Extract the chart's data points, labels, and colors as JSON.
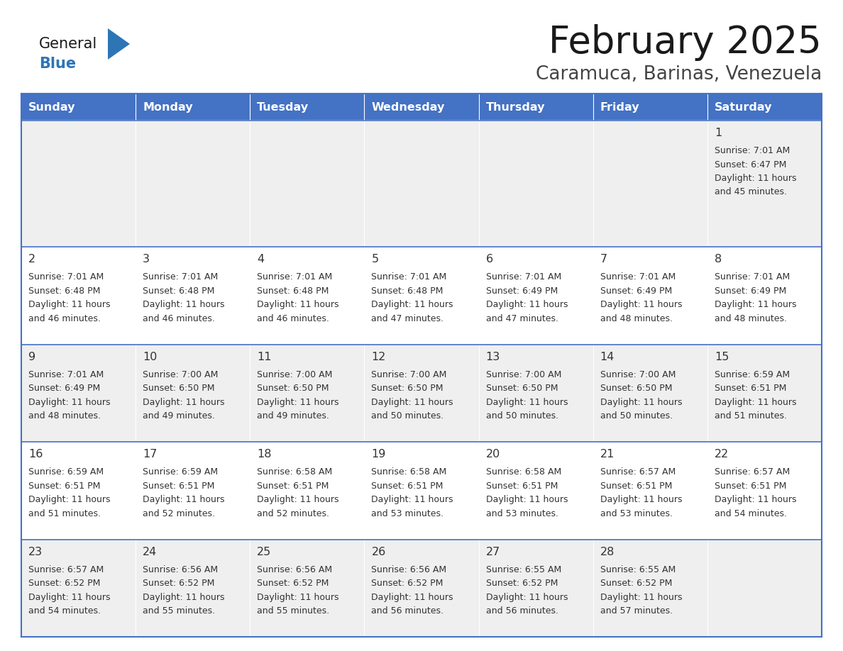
{
  "title": "February 2025",
  "subtitle": "Caramuca, Barinas, Venezuela",
  "days_of_week": [
    "Sunday",
    "Monday",
    "Tuesday",
    "Wednesday",
    "Thursday",
    "Friday",
    "Saturday"
  ],
  "header_bg": "#4472C4",
  "header_text": "#FFFFFF",
  "cell_bg_odd": "#EFEFEF",
  "cell_bg_even": "#FFFFFF",
  "cell_text": "#333333",
  "border_color": "#4472C4",
  "title_color": "#1a1a1a",
  "subtitle_color": "#444444",
  "logo_general_color": "#1a1a1a",
  "logo_blue_color": "#2E75B6",
  "calendar_data": [
    [
      null,
      null,
      null,
      null,
      null,
      null,
      {
        "day": 1,
        "sunrise": "7:01 AM",
        "sunset": "6:47 PM",
        "daylight": "11 hours",
        "daylight2": "and 45 minutes."
      }
    ],
    [
      {
        "day": 2,
        "sunrise": "7:01 AM",
        "sunset": "6:48 PM",
        "daylight": "11 hours",
        "daylight2": "and 46 minutes."
      },
      {
        "day": 3,
        "sunrise": "7:01 AM",
        "sunset": "6:48 PM",
        "daylight": "11 hours",
        "daylight2": "and 46 minutes."
      },
      {
        "day": 4,
        "sunrise": "7:01 AM",
        "sunset": "6:48 PM",
        "daylight": "11 hours",
        "daylight2": "and 46 minutes."
      },
      {
        "day": 5,
        "sunrise": "7:01 AM",
        "sunset": "6:48 PM",
        "daylight": "11 hours",
        "daylight2": "and 47 minutes."
      },
      {
        "day": 6,
        "sunrise": "7:01 AM",
        "sunset": "6:49 PM",
        "daylight": "11 hours",
        "daylight2": "and 47 minutes."
      },
      {
        "day": 7,
        "sunrise": "7:01 AM",
        "sunset": "6:49 PM",
        "daylight": "11 hours",
        "daylight2": "and 48 minutes."
      },
      {
        "day": 8,
        "sunrise": "7:01 AM",
        "sunset": "6:49 PM",
        "daylight": "11 hours",
        "daylight2": "and 48 minutes."
      }
    ],
    [
      {
        "day": 9,
        "sunrise": "7:01 AM",
        "sunset": "6:49 PM",
        "daylight": "11 hours",
        "daylight2": "and 48 minutes."
      },
      {
        "day": 10,
        "sunrise": "7:00 AM",
        "sunset": "6:50 PM",
        "daylight": "11 hours",
        "daylight2": "and 49 minutes."
      },
      {
        "day": 11,
        "sunrise": "7:00 AM",
        "sunset": "6:50 PM",
        "daylight": "11 hours",
        "daylight2": "and 49 minutes."
      },
      {
        "day": 12,
        "sunrise": "7:00 AM",
        "sunset": "6:50 PM",
        "daylight": "11 hours",
        "daylight2": "and 50 minutes."
      },
      {
        "day": 13,
        "sunrise": "7:00 AM",
        "sunset": "6:50 PM",
        "daylight": "11 hours",
        "daylight2": "and 50 minutes."
      },
      {
        "day": 14,
        "sunrise": "7:00 AM",
        "sunset": "6:50 PM",
        "daylight": "11 hours",
        "daylight2": "and 50 minutes."
      },
      {
        "day": 15,
        "sunrise": "6:59 AM",
        "sunset": "6:51 PM",
        "daylight": "11 hours",
        "daylight2": "and 51 minutes."
      }
    ],
    [
      {
        "day": 16,
        "sunrise": "6:59 AM",
        "sunset": "6:51 PM",
        "daylight": "11 hours",
        "daylight2": "and 51 minutes."
      },
      {
        "day": 17,
        "sunrise": "6:59 AM",
        "sunset": "6:51 PM",
        "daylight": "11 hours",
        "daylight2": "and 52 minutes."
      },
      {
        "day": 18,
        "sunrise": "6:58 AM",
        "sunset": "6:51 PM",
        "daylight": "11 hours",
        "daylight2": "and 52 minutes."
      },
      {
        "day": 19,
        "sunrise": "6:58 AM",
        "sunset": "6:51 PM",
        "daylight": "11 hours",
        "daylight2": "and 53 minutes."
      },
      {
        "day": 20,
        "sunrise": "6:58 AM",
        "sunset": "6:51 PM",
        "daylight": "11 hours",
        "daylight2": "and 53 minutes."
      },
      {
        "day": 21,
        "sunrise": "6:57 AM",
        "sunset": "6:51 PM",
        "daylight": "11 hours",
        "daylight2": "and 53 minutes."
      },
      {
        "day": 22,
        "sunrise": "6:57 AM",
        "sunset": "6:51 PM",
        "daylight": "11 hours",
        "daylight2": "and 54 minutes."
      }
    ],
    [
      {
        "day": 23,
        "sunrise": "6:57 AM",
        "sunset": "6:52 PM",
        "daylight": "11 hours",
        "daylight2": "and 54 minutes."
      },
      {
        "day": 24,
        "sunrise": "6:56 AM",
        "sunset": "6:52 PM",
        "daylight": "11 hours",
        "daylight2": "and 55 minutes."
      },
      {
        "day": 25,
        "sunrise": "6:56 AM",
        "sunset": "6:52 PM",
        "daylight": "11 hours",
        "daylight2": "and 55 minutes."
      },
      {
        "day": 26,
        "sunrise": "6:56 AM",
        "sunset": "6:52 PM",
        "daylight": "11 hours",
        "daylight2": "and 56 minutes."
      },
      {
        "day": 27,
        "sunrise": "6:55 AM",
        "sunset": "6:52 PM",
        "daylight": "11 hours",
        "daylight2": "and 56 minutes."
      },
      {
        "day": 28,
        "sunrise": "6:55 AM",
        "sunset": "6:52 PM",
        "daylight": "11 hours",
        "daylight2": "and 57 minutes."
      },
      null
    ]
  ]
}
